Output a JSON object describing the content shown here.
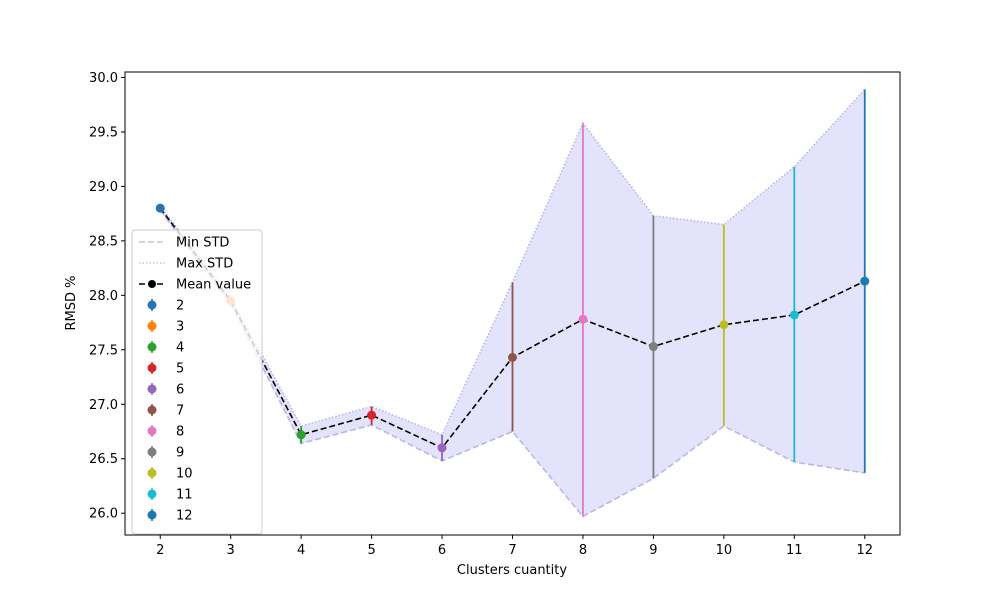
{
  "chart_data": {
    "type": "line",
    "xlabel": "Clusters cuantity",
    "ylabel": "RMSD %",
    "x_ticks": [
      "2",
      "3",
      "4",
      "5",
      "6",
      "7",
      "8",
      "9",
      "10",
      "11",
      "12"
    ],
    "y_ticks": [
      "26.0",
      "26.5",
      "27.0",
      "27.5",
      "28.0",
      "28.5",
      "29.0",
      "29.5",
      "30.0"
    ],
    "xlim": [
      1.5,
      12.5
    ],
    "ylim": [
      25.8,
      30.05
    ],
    "grid": false,
    "legend_position": "center-left",
    "x": [
      2,
      3,
      4,
      5,
      6,
      7,
      8,
      9,
      10,
      11,
      12
    ],
    "mean": [
      28.8,
      27.95,
      26.72,
      26.9,
      26.6,
      27.43,
      27.78,
      27.53,
      27.73,
      27.82,
      28.13
    ],
    "min_std": [
      28.78,
      27.92,
      26.64,
      26.81,
      26.48,
      26.75,
      25.97,
      26.32,
      26.8,
      26.47,
      26.37
    ],
    "max_std": [
      28.82,
      27.98,
      26.8,
      26.98,
      26.72,
      28.12,
      29.58,
      28.73,
      28.65,
      29.18,
      29.89
    ],
    "point_series": [
      {
        "name": "2",
        "color": "#1f77b4"
      },
      {
        "name": "3",
        "color": "#ff7f0e"
      },
      {
        "name": "4",
        "color": "#2ca02c"
      },
      {
        "name": "5",
        "color": "#d62728"
      },
      {
        "name": "6",
        "color": "#9467bd"
      },
      {
        "name": "7",
        "color": "#8c564b"
      },
      {
        "name": "8",
        "color": "#e377c2"
      },
      {
        "name": "9",
        "color": "#7f7f7f"
      },
      {
        "name": "10",
        "color": "#bcbd22"
      },
      {
        "name": "11",
        "color": "#17becf"
      },
      {
        "name": "12",
        "color": "#1f77b4"
      }
    ],
    "line_series": [
      {
        "name": "Min STD",
        "style": "dashed",
        "color": "#c8c8c8"
      },
      {
        "name": "Max STD",
        "style": "dotted",
        "color": "#c8c8c8"
      },
      {
        "name": "Mean value",
        "style": "dashed-marker",
        "color": "#000000"
      }
    ],
    "band_color": "#e0e0fb",
    "band_edge_color": "#b9b6e6"
  }
}
